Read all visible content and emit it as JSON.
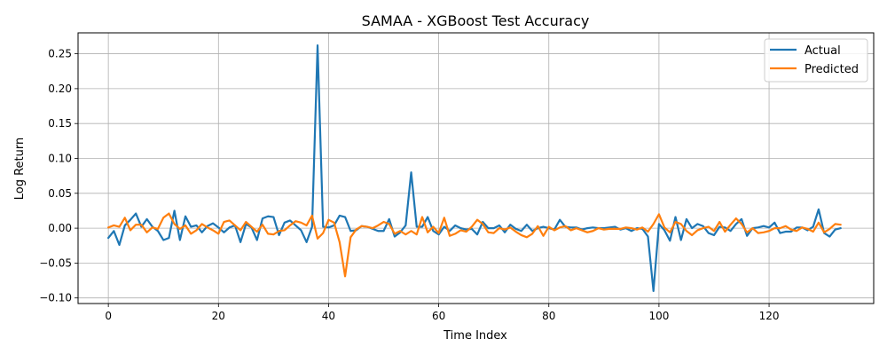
{
  "chart_data": {
    "type": "line",
    "title": "SAMAA - XGBoost Test Accuracy",
    "xlabel": "Time Index",
    "ylabel": "Log Return",
    "xlim": [
      -5.5,
      139
    ],
    "ylim": [
      -0.108,
      0.28
    ],
    "xticks": [
      0,
      20,
      40,
      60,
      80,
      100,
      120
    ],
    "xtick_labels": [
      "0",
      "20",
      "40",
      "60",
      "80",
      "100",
      "120"
    ],
    "yticks": [
      -0.1,
      -0.05,
      0.0,
      0.05,
      0.1,
      0.15,
      0.2,
      0.25
    ],
    "ytick_labels": [
      "−0.10",
      "−0.05",
      "0.00",
      "0.05",
      "0.10",
      "0.15",
      "0.20",
      "0.25"
    ],
    "grid": true,
    "legend_position": "top-right",
    "series": [
      {
        "name": "Actual",
        "color": "#1f77b4",
        "values": [
          -0.014,
          -0.004,
          -0.024,
          0.004,
          0.012,
          0.021,
          0.002,
          0.013,
          0.002,
          -0.004,
          -0.017,
          -0.014,
          0.025,
          -0.017,
          0.017,
          0.002,
          0.004,
          -0.006,
          0.003,
          0.007,
          0.001,
          -0.006,
          0.001,
          0.004,
          -0.02,
          0.006,
          0.001,
          -0.017,
          0.014,
          0.017,
          0.016,
          -0.01,
          0.008,
          0.011,
          0.004,
          -0.003,
          -0.02,
          0.002,
          0.262,
          0.002,
          0.001,
          0.004,
          0.018,
          0.016,
          -0.004,
          -0.003,
          0.003,
          0.002,
          -0.001,
          -0.004,
          -0.004,
          0.013,
          -0.012,
          -0.006,
          0.004,
          0.08,
          0.002,
          0.002,
          0.016,
          -0.004,
          -0.009,
          0.002,
          -0.004,
          0.004,
          0.0,
          -0.002,
          -0.001,
          -0.009,
          0.009,
          0.0,
          0.0,
          0.004,
          -0.006,
          0.005,
          -0.001,
          -0.004,
          0.005,
          -0.004,
          0.0,
          0.002,
          0.0,
          -0.002,
          0.012,
          0.002,
          0.001,
          0.001,
          -0.002,
          0.0,
          0.001,
          0.0,
          0.0,
          0.001,
          0.002,
          -0.002,
          0.0,
          -0.004,
          0.0,
          -0.001,
          -0.012,
          -0.09,
          0.006,
          -0.003,
          -0.018,
          0.016,
          -0.017,
          0.013,
          0.0,
          0.006,
          0.003,
          -0.007,
          -0.01,
          0.002,
          0.001,
          -0.004,
          0.006,
          0.013,
          -0.011,
          0.0,
          0.001,
          0.003,
          0.001,
          0.008,
          -0.007,
          -0.005,
          -0.005,
          0.001,
          0.001,
          -0.003,
          0.002,
          0.027,
          -0.007,
          -0.012,
          -0.002,
          0.0
        ]
      },
      {
        "name": "Predicted",
        "color": "#ff7f0e",
        "values": [
          0.001,
          0.004,
          0.002,
          0.015,
          -0.003,
          0.005,
          0.005,
          -0.006,
          0.001,
          -0.001,
          0.015,
          0.021,
          0.006,
          -0.001,
          0.004,
          -0.008,
          -0.003,
          0.006,
          0.001,
          -0.003,
          -0.008,
          0.009,
          0.011,
          0.004,
          -0.003,
          0.009,
          0.002,
          -0.005,
          0.005,
          -0.008,
          -0.009,
          -0.004,
          -0.003,
          0.004,
          0.01,
          0.008,
          0.004,
          0.018,
          -0.015,
          -0.007,
          0.012,
          0.008,
          -0.02,
          -0.069,
          -0.013,
          -0.002,
          0.003,
          0.002,
          0.0,
          0.004,
          0.009,
          0.006,
          -0.008,
          -0.004,
          -0.009,
          -0.004,
          -0.009,
          0.016,
          -0.006,
          0.002,
          -0.007,
          0.015,
          -0.011,
          -0.008,
          -0.003,
          -0.005,
          0.002,
          0.012,
          0.006,
          -0.006,
          -0.007,
          0.0,
          -0.002,
          0.001,
          -0.005,
          -0.01,
          -0.013,
          -0.008,
          0.003,
          -0.011,
          0.002,
          -0.003,
          0.001,
          0.003,
          -0.003,
          0.0,
          -0.003,
          -0.006,
          -0.004,
          0.0,
          -0.002,
          -0.001,
          -0.001,
          -0.001,
          0.001,
          0.0,
          -0.002,
          0.001,
          -0.005,
          0.006,
          0.02,
          0.001,
          -0.006,
          0.009,
          0.006,
          -0.004,
          -0.01,
          -0.003,
          0.0,
          0.002,
          -0.004,
          0.009,
          -0.005,
          0.005,
          0.014,
          0.006,
          -0.006,
          0.0,
          -0.007,
          -0.006,
          -0.004,
          0.0,
          0.0,
          0.003,
          -0.002,
          -0.004,
          0.001,
          -0.001,
          -0.005,
          0.008,
          -0.006,
          -0.001,
          0.006,
          0.005
        ]
      }
    ]
  }
}
